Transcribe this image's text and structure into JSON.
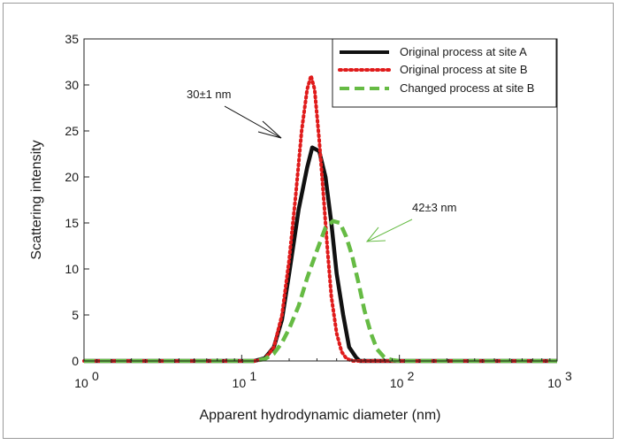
{
  "chart_data": {
    "type": "line",
    "xlabel": "Apparent hydrodynamic diameter (nm)",
    "ylabel": "Scattering intensity",
    "xscale": "log",
    "xlim": [
      1,
      1000
    ],
    "ylim": [
      0,
      35
    ],
    "x_ticks": [
      {
        "value": 1,
        "base": "10",
        "exp": "0"
      },
      {
        "value": 10,
        "base": "10",
        "exp": "1"
      },
      {
        "value": 100,
        "base": "10",
        "exp": "2"
      },
      {
        "value": 1000,
        "base": "10",
        "exp": "3"
      }
    ],
    "y_ticks": [
      0,
      5,
      10,
      15,
      20,
      25,
      30,
      35
    ],
    "grid": false,
    "legend_position": "top-right",
    "series": [
      {
        "name": "Original process at site A",
        "color": "#111111",
        "style": "solid",
        "x": [
          1,
          1.33,
          1.78,
          2.37,
          3.16,
          4.22,
          5.62,
          7.5,
          10,
          12,
          14,
          16,
          18,
          20,
          23,
          26,
          28,
          31,
          34,
          37,
          40,
          44,
          48,
          53,
          56,
          60,
          70,
          80,
          100,
          150,
          200,
          300,
          500,
          700,
          1000
        ],
        "y": [
          0,
          0,
          0,
          0,
          0,
          0,
          0,
          0,
          0,
          0,
          0.3,
          1.5,
          4.5,
          9.5,
          16.5,
          21,
          23.2,
          22.8,
          20,
          15,
          9.5,
          5,
          1.5,
          0.4,
          0,
          0,
          0,
          0,
          0,
          0,
          0,
          0,
          0,
          0,
          0
        ]
      },
      {
        "name": "Original process at site B",
        "color": "#e01b1b",
        "style": "dotted",
        "x": [
          1,
          1.33,
          1.78,
          2.37,
          3.16,
          4.22,
          5.62,
          7.5,
          10,
          12,
          14,
          16,
          18,
          20,
          22,
          24,
          26,
          27.5,
          29,
          31,
          33,
          35,
          37,
          40,
          43,
          46,
          50,
          55,
          60,
          80,
          100,
          150,
          200,
          300,
          500,
          700,
          1000
        ],
        "y": [
          0,
          0,
          0,
          0,
          0,
          0,
          0,
          0,
          0,
          0,
          0.2,
          1.5,
          5,
          11,
          18,
          25,
          29.5,
          31,
          29.5,
          24,
          18,
          12,
          7,
          3,
          1,
          0.3,
          0,
          0,
          0,
          0,
          0,
          0,
          0,
          0,
          0,
          0,
          0
        ]
      },
      {
        "name": "Changed process at site B",
        "color": "#66bb44",
        "style": "dashed",
        "x": [
          1,
          1.33,
          1.78,
          2.37,
          3.16,
          4.22,
          5.62,
          7.5,
          10,
          12,
          14,
          16,
          18,
          20,
          23,
          26,
          30,
          34,
          38,
          42,
          46,
          50,
          55,
          60,
          66,
          72,
          80,
          90,
          100,
          110,
          150,
          200,
          300,
          500,
          700,
          1000
        ],
        "y": [
          0,
          0,
          0,
          0,
          0,
          0,
          0,
          0,
          0,
          0,
          0.2,
          0.8,
          2,
          3.5,
          6,
          9,
          12,
          14.5,
          15.2,
          15,
          13.5,
          11.5,
          8.5,
          5.5,
          3,
          1.3,
          0.4,
          0.1,
          0,
          0,
          0,
          0,
          0,
          0,
          0,
          0
        ]
      }
    ],
    "annotations": [
      {
        "text": "30±1 nm",
        "color": "#111111"
      },
      {
        "text": "42±3 nm",
        "color": "#66bb44"
      }
    ]
  }
}
